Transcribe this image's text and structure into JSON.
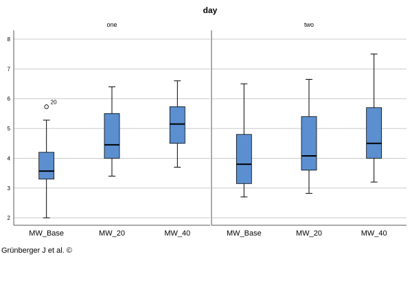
{
  "chart_data": {
    "type": "boxplot",
    "title": "day",
    "xlabel": "",
    "ylabel": "",
    "ylim": [
      1.75,
      8.3
    ],
    "yticks": [
      2,
      3,
      4,
      5,
      6,
      7,
      8
    ],
    "grid": "horizontal",
    "categories": [
      "MW_Base",
      "MW_20",
      "MW_40"
    ],
    "box_color": "#5b8fd0",
    "panels": [
      {
        "name": "one",
        "boxes": [
          {
            "category": "MW_Base",
            "min": 2.0,
            "q1": 3.3,
            "median": 3.57,
            "q3": 4.2,
            "max": 5.28,
            "outliers": [
              {
                "value": 5.73,
                "label": "20"
              }
            ]
          },
          {
            "category": "MW_20",
            "min": 3.4,
            "q1": 4.0,
            "median": 4.45,
            "q3": 5.5,
            "max": 6.4,
            "outliers": []
          },
          {
            "category": "MW_40",
            "min": 3.7,
            "q1": 4.5,
            "median": 5.15,
            "q3": 5.73,
            "max": 6.6,
            "outliers": []
          }
        ]
      },
      {
        "name": "two",
        "boxes": [
          {
            "category": "MW_Base",
            "min": 2.7,
            "q1": 3.15,
            "median": 3.8,
            "q3": 4.8,
            "max": 6.5,
            "outliers": []
          },
          {
            "category": "MW_20",
            "min": 2.82,
            "q1": 3.6,
            "median": 4.08,
            "q3": 5.4,
            "max": 6.65,
            "outliers": []
          },
          {
            "category": "MW_40",
            "min": 3.2,
            "q1": 4.0,
            "median": 4.5,
            "q3": 5.7,
            "max": 7.5,
            "outliers": []
          }
        ]
      }
    ]
  },
  "credit": "Grünberger J et al. ©"
}
